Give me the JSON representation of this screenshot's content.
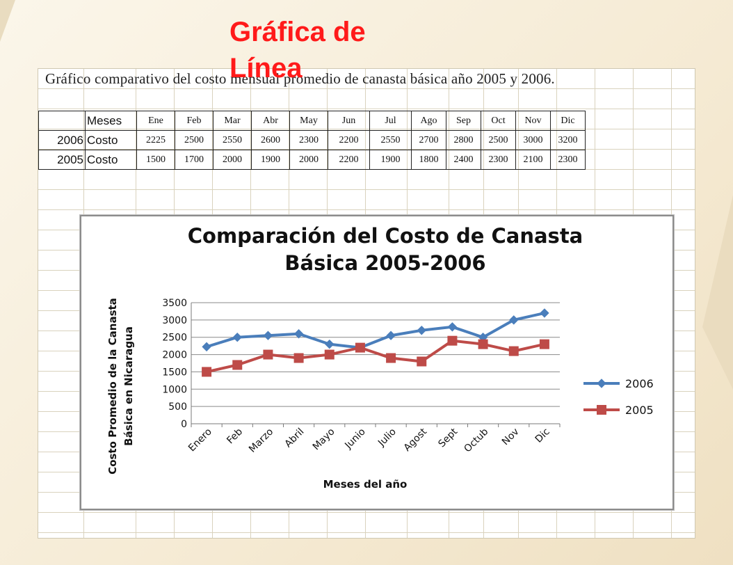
{
  "slide": {
    "title": "Gráfica de Línea"
  },
  "sheet": {
    "title": "Gráfico comparativo del costo mensual promedio de canasta básica año 2005 y 2006.",
    "table": {
      "header_label": "Meses",
      "months": [
        "Ene",
        "Feb",
        "Mar",
        "Abr",
        "May",
        "Jun",
        "Jul",
        "Ago",
        "Sep",
        "Oct",
        "Nov",
        "Dic"
      ],
      "rows": [
        {
          "year": "2006",
          "label": "Costo",
          "values": [
            "2225",
            "2500",
            "2550",
            "2600",
            "2300",
            "2200",
            "2550",
            "2700",
            "2800",
            "2500",
            "3000",
            "3200"
          ]
        },
        {
          "year": "2005",
          "label": "Costo",
          "values": [
            "1500",
            "1700",
            "2000",
            "1900",
            "2000",
            "2200",
            "1900",
            "1800",
            "2400",
            "2300",
            "2100",
            "2300"
          ]
        }
      ]
    }
  },
  "chart_data": {
    "type": "line",
    "title": "Comparación del Costo de Canasta Básica 2005-2006",
    "title_lines": [
      "Comparación del Costo de Canasta",
      "Básica 2005-2006"
    ],
    "xlabel": "Meses del año",
    "ylabel_lines": [
      "Costo Promedio de la Canasta",
      "Básica en Nicaragua"
    ],
    "categories": [
      "Enero",
      "Feb",
      "Marzo",
      "Abril",
      "Mayo",
      "Junio",
      "Julio",
      "Agost",
      "Sept",
      "Octub",
      "Nov",
      "Dic"
    ],
    "series": [
      {
        "name": "2006",
        "marker": "diamond",
        "color": "#4a7ebb",
        "values": [
          2225,
          2500,
          2550,
          2600,
          2300,
          2200,
          2550,
          2700,
          2800,
          2500,
          3000,
          3200
        ]
      },
      {
        "name": "2005",
        "marker": "square",
        "color": "#be4b48",
        "values": [
          1500,
          1700,
          2000,
          1900,
          2000,
          2200,
          1900,
          1800,
          2400,
          2300,
          2100,
          2300
        ]
      }
    ],
    "ylim": [
      0,
      3500
    ],
    "yticks": [
      0,
      500,
      1000,
      1500,
      2000,
      2500,
      3000,
      3500
    ],
    "grid": true,
    "legend_position": "right"
  }
}
